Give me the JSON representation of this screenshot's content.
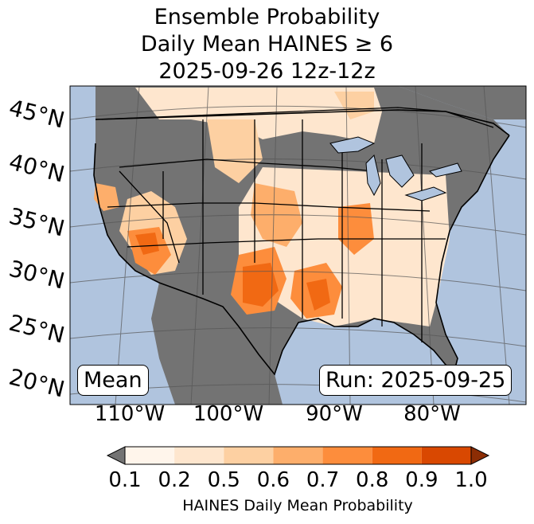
{
  "title": {
    "line1": "Ensemble Probability",
    "line2": "Daily Mean HAINES ≥ 6",
    "line3": "2025-09-26 12z-12z"
  },
  "map": {
    "lat_labels": [
      "45°N",
      "40°N",
      "35°N",
      "30°N",
      "25°N",
      "20°N"
    ],
    "lon_labels": [
      "110°W",
      "100°W",
      "90°W",
      "80°W"
    ],
    "left_box": "Mean",
    "right_box": "Run: 2025-09-25",
    "colors": {
      "ocean": "#b0c4de",
      "land_below": "#737373",
      "border": "#000000",
      "grid": "#555555"
    },
    "probability_regions": [
      {
        "region": "Southern Plains / West Texas",
        "level": 0.9
      },
      {
        "region": "Kansas / Oklahoma",
        "level": 0.7
      },
      {
        "region": "East Texas / Louisiana",
        "level": 0.8
      },
      {
        "region": "Arizona / Southern Nevada",
        "level": 0.8
      },
      {
        "region": "Missouri / Arkansas",
        "level": 0.7
      },
      {
        "region": "Northern Plains",
        "level": 0.5
      },
      {
        "region": "California Central Valley",
        "level": 0.6
      }
    ]
  },
  "colorbar": {
    "label": "HAINES Daily Mean Probability",
    "ticks": [
      "0.1",
      "0.2",
      "0.5",
      "0.6",
      "0.7",
      "0.8",
      "0.9",
      "1.0"
    ],
    "colors": [
      "#fff5eb",
      "#fee6ce",
      "#fdd0a2",
      "#fdae6b",
      "#fd8d3c",
      "#f16913",
      "#d94801",
      "#8c2d04"
    ],
    "under_color": "#737373"
  }
}
